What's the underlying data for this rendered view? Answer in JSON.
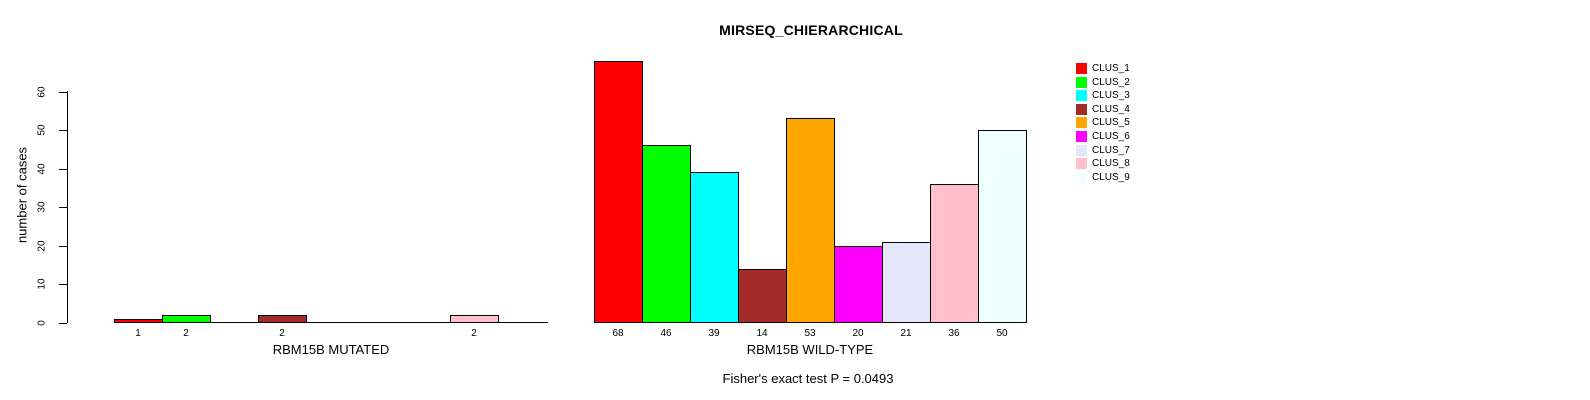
{
  "chart_data": {
    "type": "bar",
    "title": "MIRSEQ_CHIERARCHICAL",
    "ylabel": "number of cases",
    "y_ticks": [
      0,
      10,
      20,
      30,
      40,
      50,
      60
    ],
    "ylim": [
      0,
      68
    ],
    "grid": false,
    "legend_position": "right",
    "categories": [
      "CLUS_1",
      "CLUS_2",
      "CLUS_3",
      "CLUS_4",
      "CLUS_5",
      "CLUS_6",
      "CLUS_7",
      "CLUS_8",
      "CLUS_9"
    ],
    "colors": [
      "#FF0000",
      "#00FF00",
      "#00FFFF",
      "#A52A2A",
      "#FFA500",
      "#FF00FF",
      "#E6E6FA",
      "#FFC0CB",
      "#F0FFFF"
    ],
    "panels": [
      {
        "xlabel": "RBM15B MUTATED",
        "values": [
          1,
          2,
          0,
          2,
          0,
          0,
          0,
          2,
          0
        ],
        "bar_labels": [
          "1",
          "2",
          "",
          "2",
          "",
          "",
          "",
          "2",
          ""
        ]
      },
      {
        "xlabel": "RBM15B WILD-TYPE",
        "values": [
          68,
          46,
          39,
          14,
          53,
          20,
          21,
          36,
          50
        ],
        "bar_labels": [
          "68",
          "46",
          "39",
          "14",
          "53",
          "20",
          "21",
          "36",
          "50"
        ]
      }
    ],
    "annotation": "Fisher's exact test P = 0.0493"
  }
}
